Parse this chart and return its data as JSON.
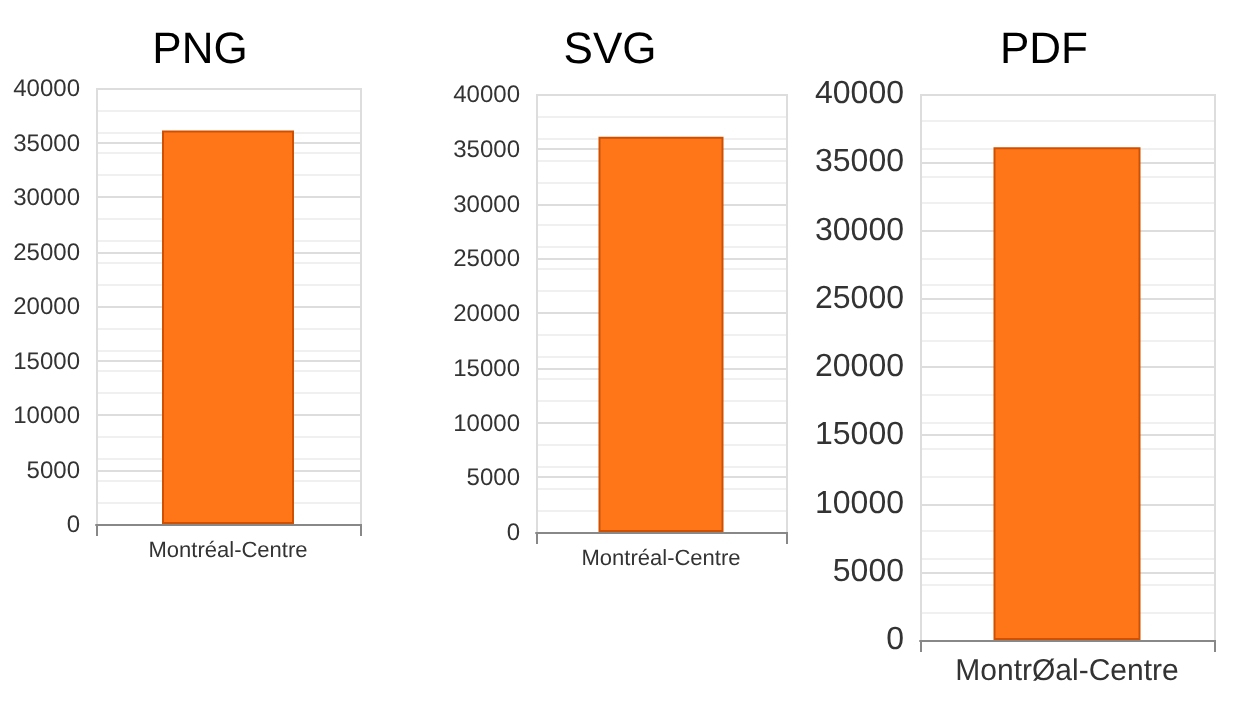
{
  "chart_data": [
    {
      "type": "bar",
      "title": "PNG",
      "categories": [
        "Montréal-Centre"
      ],
      "values": [
        36100
      ],
      "color": "#ff7619",
      "ylim": [
        0,
        40000
      ],
      "yticks": [
        0,
        5000,
        10000,
        15000,
        20000,
        25000,
        30000,
        35000,
        40000
      ],
      "grid": true
    },
    {
      "type": "bar",
      "title": "SVG",
      "categories": [
        "Montréal-Centre"
      ],
      "values": [
        36100
      ],
      "color": "#ff7619",
      "ylim": [
        0,
        40000
      ],
      "yticks": [
        0,
        5000,
        10000,
        15000,
        20000,
        25000,
        30000,
        35000,
        40000
      ],
      "grid": true
    },
    {
      "type": "bar",
      "title": "PDF",
      "categories": [
        "MontrØal-Centre"
      ],
      "values": [
        36100
      ],
      "color": "#ff7619",
      "ylim": [
        0,
        40000
      ],
      "yticks": [
        0,
        5000,
        10000,
        15000,
        20000,
        25000,
        30000,
        35000,
        40000
      ],
      "grid": true
    }
  ]
}
